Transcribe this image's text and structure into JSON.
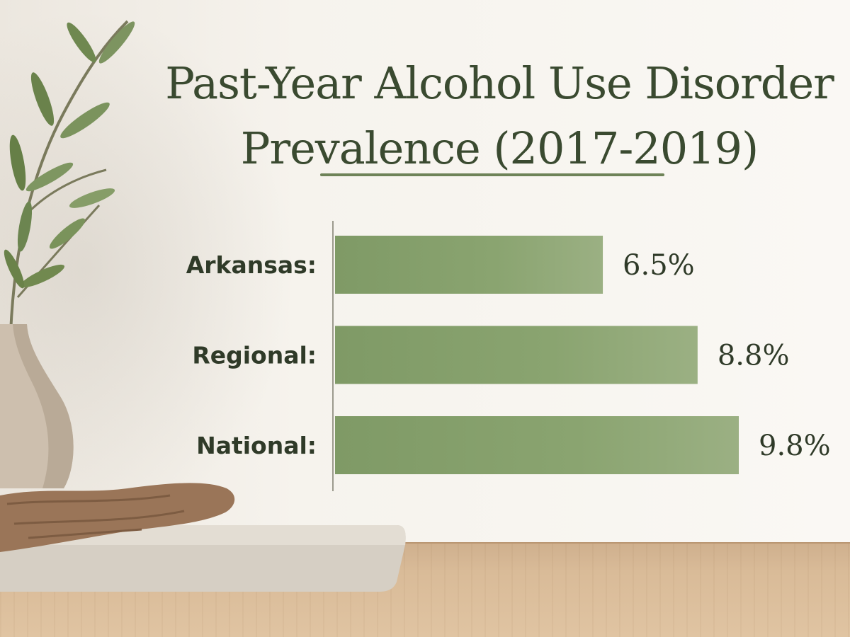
{
  "title": "Past-Year Alcohol Use Disorder Prevalence (2017-2019)",
  "chart_data": {
    "type": "bar",
    "orientation": "horizontal",
    "title": "Past-Year Alcohol Use Disorder Prevalence (2017-2019)",
    "categories": [
      "Arkansas:",
      "Regional:",
      "National:"
    ],
    "values": [
      6.5,
      8.8,
      9.8
    ],
    "value_labels": [
      "6.5%",
      "8.8%",
      "9.8%"
    ],
    "unit": "%",
    "xlim": [
      0,
      11.3
    ],
    "grid": false,
    "legend": "none"
  },
  "colors": {
    "bar": "#7f9a66",
    "bar_light": "#9fb487",
    "text": "#2f3a28",
    "title": "#3a4a30",
    "axis": "#9c9a8e"
  }
}
